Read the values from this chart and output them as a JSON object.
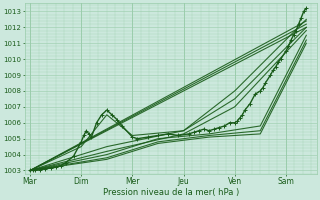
{
  "background_color": "#cce8dd",
  "grid_color": "#99ccaa",
  "line_color": "#1a5c1a",
  "marker_color": "#1a5c1a",
  "xlabel": "Pression niveau de la mer( hPa )",
  "ylim": [
    1002.8,
    1013.5
  ],
  "yticks": [
    1003,
    1004,
    1005,
    1006,
    1007,
    1008,
    1009,
    1010,
    1011,
    1012,
    1013
  ],
  "xlabels": [
    "Mar",
    "Dim",
    "Mer",
    "Jeu",
    "Ven",
    "Sam"
  ],
  "x_ticks": [
    0,
    1,
    2,
    3,
    4,
    5
  ],
  "xlim": [
    -0.1,
    5.6
  ],
  "series": [
    {
      "x": [
        0.0,
        0.05,
        0.1,
        0.2,
        0.3,
        0.4,
        0.5,
        0.6,
        0.7,
        0.85,
        1.0,
        1.05,
        1.1,
        1.15,
        1.2,
        1.3,
        1.4,
        1.5,
        1.6,
        1.7,
        1.8,
        2.0,
        2.1,
        2.3,
        2.5,
        2.7,
        2.9,
        3.1,
        3.2,
        3.3,
        3.4,
        3.5,
        3.6,
        3.7,
        3.8,
        3.9,
        4.0,
        4.05,
        4.1,
        4.15,
        4.2,
        4.3,
        4.4,
        4.5,
        4.55,
        4.6,
        4.7,
        4.75,
        4.8,
        4.85,
        4.9,
        5.0,
        5.05,
        5.1,
        5.15,
        5.2,
        5.25,
        5.3,
        5.35,
        5.4
      ],
      "y": [
        1003.0,
        1003.0,
        1003.0,
        1003.05,
        1003.1,
        1003.15,
        1003.2,
        1003.3,
        1003.5,
        1003.9,
        1004.8,
        1005.2,
        1005.5,
        1005.3,
        1005.1,
        1006.0,
        1006.5,
        1006.8,
        1006.5,
        1006.2,
        1005.8,
        1005.1,
        1005.0,
        1005.1,
        1005.2,
        1005.3,
        1005.2,
        1005.3,
        1005.4,
        1005.5,
        1005.6,
        1005.5,
        1005.6,
        1005.7,
        1005.8,
        1006.0,
        1006.0,
        1006.1,
        1006.3,
        1006.5,
        1006.8,
        1007.2,
        1007.8,
        1008.0,
        1008.2,
        1008.5,
        1009.0,
        1009.3,
        1009.5,
        1009.8,
        1010.0,
        1010.5,
        1010.8,
        1011.2,
        1011.5,
        1011.8,
        1012.2,
        1012.6,
        1013.0,
        1013.2
      ],
      "marker": true,
      "lw": 1.0,
      "alpha": 1.0
    },
    {
      "x": [
        0.0,
        5.4
      ],
      "y": [
        1003.0,
        1012.0
      ],
      "marker": false,
      "lw": 0.8,
      "alpha": 0.9
    },
    {
      "x": [
        0.0,
        5.4
      ],
      "y": [
        1003.0,
        1012.2
      ],
      "marker": false,
      "lw": 0.8,
      "alpha": 0.9
    },
    {
      "x": [
        0.0,
        5.4
      ],
      "y": [
        1003.0,
        1012.4
      ],
      "marker": false,
      "lw": 0.8,
      "alpha": 0.9
    },
    {
      "x": [
        0.0,
        1.5,
        3.0,
        4.0,
        5.4
      ],
      "y": [
        1003.0,
        1004.5,
        1005.5,
        1007.5,
        1012.0
      ],
      "marker": false,
      "lw": 0.8,
      "alpha": 0.9
    },
    {
      "x": [
        0.0,
        1.5,
        3.0,
        4.0,
        5.4
      ],
      "y": [
        1003.0,
        1004.2,
        1005.3,
        1007.0,
        1011.8
      ],
      "marker": false,
      "lw": 0.8,
      "alpha": 0.9
    },
    {
      "x": [
        0.0,
        1.5,
        2.5,
        3.5,
        4.5,
        5.4
      ],
      "y": [
        1003.0,
        1004.0,
        1005.0,
        1005.3,
        1005.8,
        1011.5
      ],
      "marker": false,
      "lw": 0.8,
      "alpha": 0.9
    },
    {
      "x": [
        0.0,
        1.5,
        2.5,
        3.5,
        4.5,
        5.4
      ],
      "y": [
        1003.0,
        1003.8,
        1004.8,
        1005.2,
        1005.5,
        1011.2
      ],
      "marker": false,
      "lw": 0.8,
      "alpha": 0.9
    },
    {
      "x": [
        0.0,
        1.5,
        2.5,
        3.5,
        4.5,
        5.4
      ],
      "y": [
        1003.0,
        1003.7,
        1004.7,
        1005.1,
        1005.3,
        1011.0
      ],
      "marker": false,
      "lw": 0.8,
      "alpha": 0.9
    },
    {
      "x": [
        0.0,
        1.0,
        1.5,
        2.0,
        3.0,
        4.0,
        5.4
      ],
      "y": [
        1003.0,
        1004.5,
        1006.5,
        1005.2,
        1005.5,
        1008.0,
        1012.5
      ],
      "marker": false,
      "lw": 0.8,
      "alpha": 0.9
    }
  ]
}
